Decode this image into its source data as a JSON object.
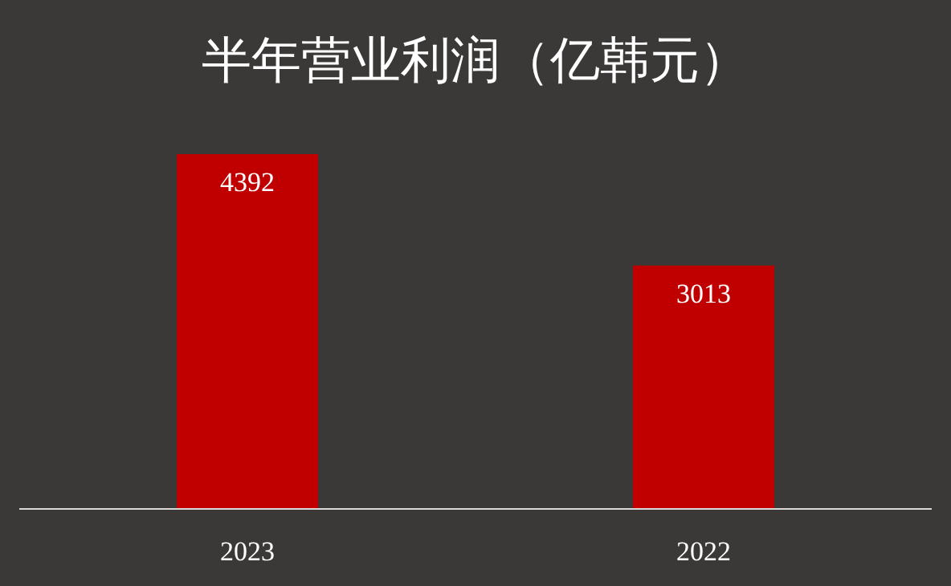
{
  "chart_data": {
    "type": "bar",
    "title": "半年营业利润（亿韩元）",
    "categories": [
      "2023",
      "2022"
    ],
    "values": [
      4392,
      3013
    ],
    "color": "#c00000",
    "data_labels": true
  }
}
